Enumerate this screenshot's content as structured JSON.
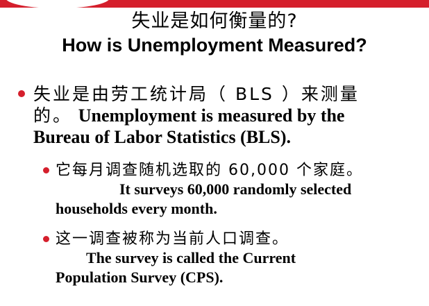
{
  "slide": {
    "title_cn": "失业是如何衡量的?",
    "title_en": "How is Unemployment Measured?",
    "bullet1": {
      "cn_line1": "失业是由劳工统计局（ BLS ）来测量",
      "cn_line2": "的。",
      "en_part1": "Unemployment is measured by the",
      "en_part2": "Bureau of Labor Statistics (BLS)."
    },
    "bullet2": {
      "cn": "它每月调查随机选取的 60,000 个家庭。",
      "en_line1": "It surveys 60,000 randomly selected",
      "en_line2": "households every month."
    },
    "bullet3": {
      "cn": "这一调查被称为当前人口调查。",
      "en_line1": "The survey is called the Current",
      "en_line2": "Population Survey (CPS)."
    }
  },
  "colors": {
    "accent": "#d51f2c",
    "text": "#000000",
    "background": "#ffffff"
  }
}
